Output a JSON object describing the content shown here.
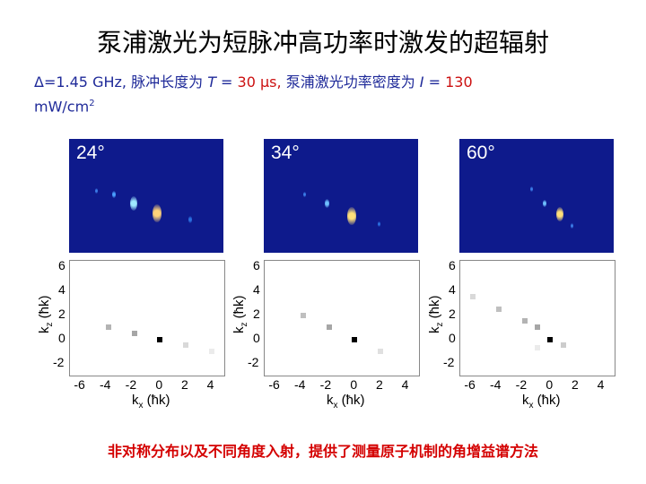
{
  "title": "泵浦激光为短脉冲高功率时激发的超辐射",
  "params": {
    "delta": "Δ=1.45 GHz,",
    "pulse_label": "脉冲长度为",
    "T_var": "T",
    "T_eq": " = ",
    "T_val": "30 μs,",
    "pump_label": "泵浦激光功率密度为",
    "I_var": "I",
    "I_eq": " = ",
    "I_val": "130",
    "unit_a": "mW/cm",
    "unit_exp": "2"
  },
  "bottom_caption": "非对称分布以及不同角度入射，提供了测量原子机制的角增益谱方法",
  "panels": [
    {
      "angle": "24°"
    },
    {
      "angle": "34°"
    },
    {
      "angle": "60°"
    }
  ],
  "axes": {
    "y_ticks": [
      "6",
      "4",
      "2",
      "0",
      "-2"
    ],
    "x_ticks": [
      "-6",
      "-4",
      "-2",
      "0",
      "2",
      "4"
    ],
    "ylabel_k": "k",
    "ylabel_sub": "z",
    "ylabel_unit": " (ħk)",
    "xlabel_k": "k",
    "xlabel_sub": "x",
    "xlabel_unit": " (ħk)"
  },
  "chart_data": [
    {
      "type": "scatter",
      "title": "24°",
      "xlabel": "kx (ħk)",
      "ylabel": "kz (ħk)",
      "xlim": [
        -7,
        5
      ],
      "ylim": [
        -3,
        6.5
      ],
      "points": [
        {
          "x": -4,
          "y": 1,
          "intensity": 0.3
        },
        {
          "x": -2,
          "y": 0.5,
          "intensity": 0.35
        },
        {
          "x": 0,
          "y": 0,
          "intensity": 1.0
        },
        {
          "x": 2,
          "y": -0.5,
          "intensity": 0.15
        },
        {
          "x": 4,
          "y": -1,
          "intensity": 0.08
        }
      ]
    },
    {
      "type": "scatter",
      "title": "34°",
      "xlabel": "kx (ħk)",
      "ylabel": "kz (ħk)",
      "xlim": [
        -7,
        5
      ],
      "ylim": [
        -3,
        6.5
      ],
      "points": [
        {
          "x": -4,
          "y": 2,
          "intensity": 0.25
        },
        {
          "x": -2,
          "y": 1,
          "intensity": 0.35
        },
        {
          "x": 0,
          "y": 0,
          "intensity": 1.0
        },
        {
          "x": 2,
          "y": -1,
          "intensity": 0.12
        }
      ]
    },
    {
      "type": "scatter",
      "title": "60°",
      "xlabel": "kx (ħk)",
      "ylabel": "kz (ħk)",
      "xlim": [
        -7,
        5
      ],
      "ylim": [
        -3,
        6.5
      ],
      "points": [
        {
          "x": -6,
          "y": 3.5,
          "intensity": 0.15
        },
        {
          "x": -4,
          "y": 2.5,
          "intensity": 0.25
        },
        {
          "x": -2,
          "y": 1.5,
          "intensity": 0.3
        },
        {
          "x": -1,
          "y": 1,
          "intensity": 0.35
        },
        {
          "x": 0,
          "y": 0,
          "intensity": 1.0
        },
        {
          "x": 1,
          "y": -0.5,
          "intensity": 0.2
        },
        {
          "x": -1,
          "y": -0.7,
          "intensity": 0.08
        }
      ]
    }
  ],
  "colors": {
    "title": "#000000",
    "params": "#1f2a99",
    "highlight": "#cc1111",
    "caption": "#d40000",
    "image_bg": "#0e1a8c"
  }
}
